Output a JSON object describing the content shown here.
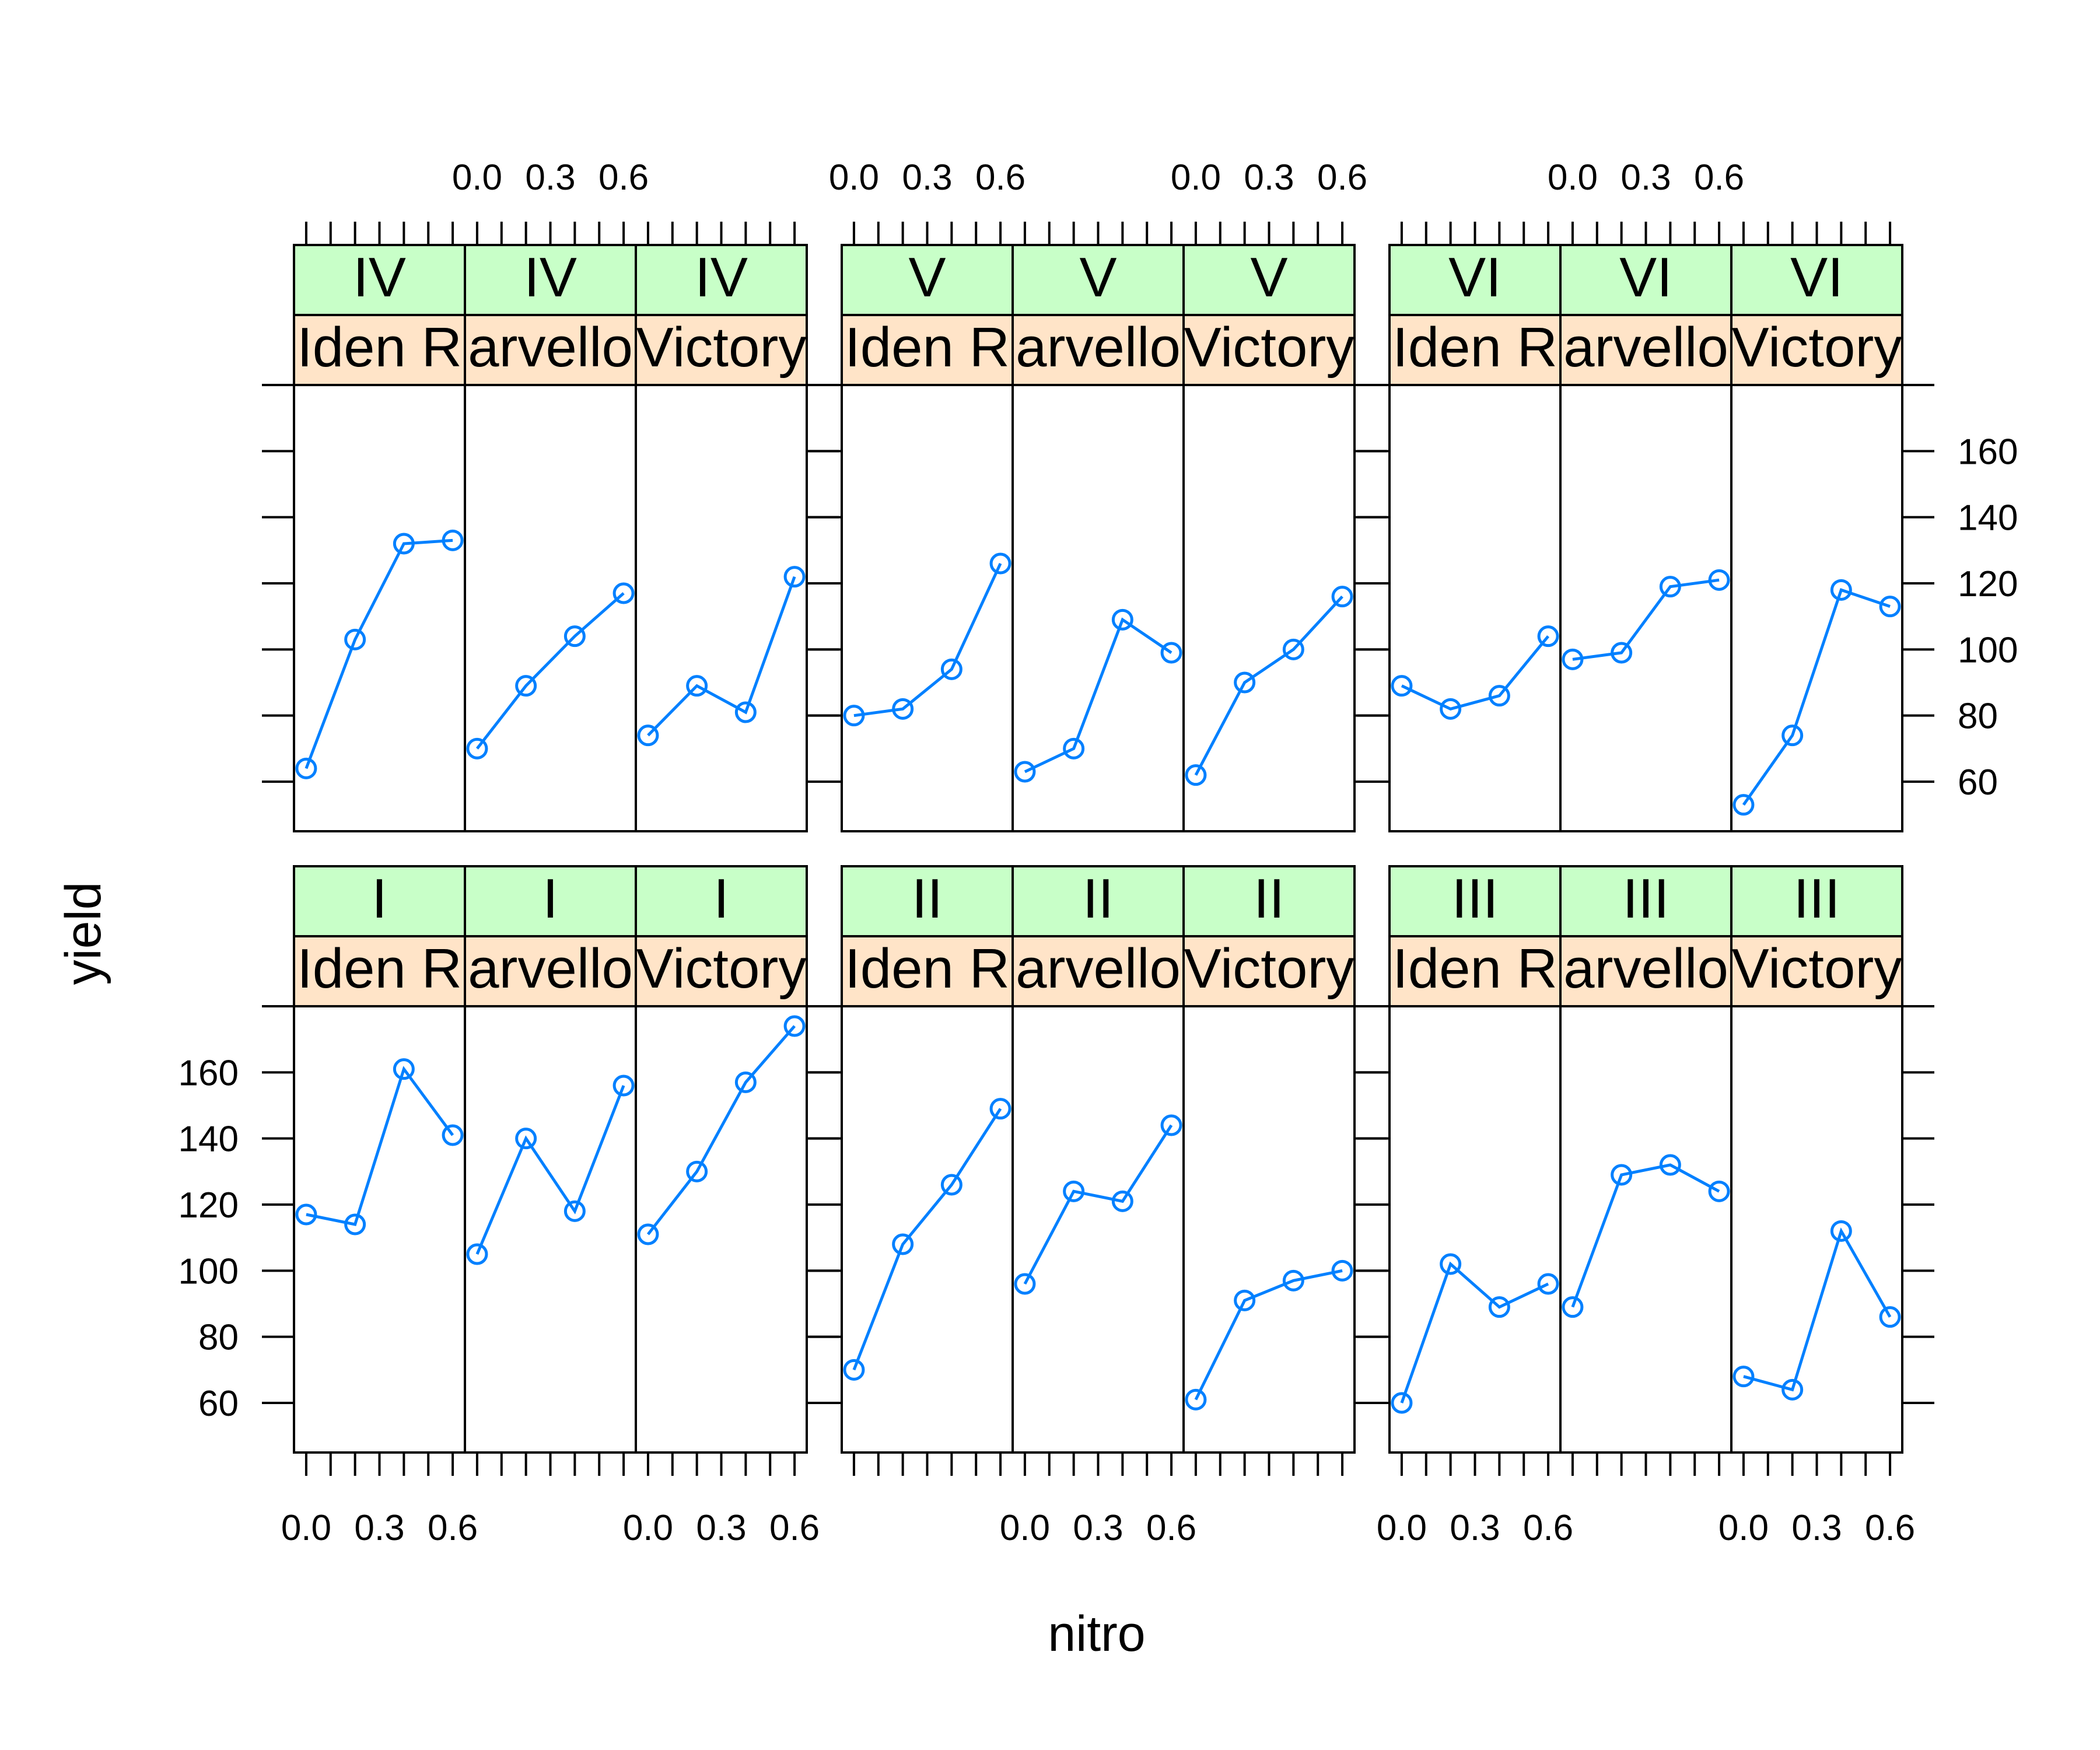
{
  "chart_data": {
    "type": "line",
    "xlabel": "nitro",
    "ylabel": "yield",
    "x": [
      0.0,
      0.2,
      0.4,
      0.6
    ],
    "x_tick_labels": [
      "0.0",
      "0.3",
      "0.6"
    ],
    "xlim": [
      -0.05,
      0.65
    ],
    "y_tick_labels": [
      "60",
      "80",
      "100",
      "120",
      "140",
      "160"
    ],
    "ylim": [
      45,
      180
    ],
    "strip_colors": {
      "block": "#c8ffc8",
      "variety": "#ffe4c8"
    },
    "series_color": "#0080ff",
    "panels": [
      {
        "block": "I",
        "variety": "Iden R",
        "values": [
          117,
          114,
          161,
          141
        ]
      },
      {
        "block": "I",
        "variety": "arvello",
        "values": [
          105,
          140,
          118,
          156
        ]
      },
      {
        "block": "I",
        "variety": "Victory",
        "values": [
          111,
          130,
          157,
          174
        ]
      },
      {
        "block": "II",
        "variety": "Iden R",
        "values": [
          70,
          108,
          126,
          149
        ]
      },
      {
        "block": "II",
        "variety": "arvello",
        "values": [
          96,
          124,
          121,
          144
        ]
      },
      {
        "block": "II",
        "variety": "Victory",
        "values": [
          61,
          91,
          97,
          100
        ]
      },
      {
        "block": "III",
        "variety": "Iden R",
        "values": [
          60,
          102,
          89,
          96
        ]
      },
      {
        "block": "III",
        "variety": "arvello",
        "values": [
          89,
          129,
          132,
          124
        ]
      },
      {
        "block": "III",
        "variety": "Victory",
        "values": [
          68,
          64,
          112,
          86
        ]
      },
      {
        "block": "IV",
        "variety": "Iden R",
        "values": [
          64,
          103,
          132,
          133
        ]
      },
      {
        "block": "IV",
        "variety": "arvello",
        "values": [
          70,
          89,
          104,
          117
        ]
      },
      {
        "block": "IV",
        "variety": "Victory",
        "values": [
          74,
          89,
          81,
          122
        ]
      },
      {
        "block": "V",
        "variety": "Iden R",
        "values": [
          80,
          82,
          94,
          126
        ]
      },
      {
        "block": "V",
        "variety": "arvello",
        "values": [
          63,
          70,
          109,
          99
        ]
      },
      {
        "block": "V",
        "variety": "Victory",
        "values": [
          62,
          90,
          100,
          116
        ]
      },
      {
        "block": "VI",
        "variety": "Iden R",
        "values": [
          89,
          82,
          86,
          104
        ]
      },
      {
        "block": "VI",
        "variety": "arvello",
        "values": [
          97,
          99,
          119,
          121
        ]
      },
      {
        "block": "VI",
        "variety": "Victory",
        "values": [
          53,
          74,
          118,
          113
        ]
      }
    ]
  }
}
